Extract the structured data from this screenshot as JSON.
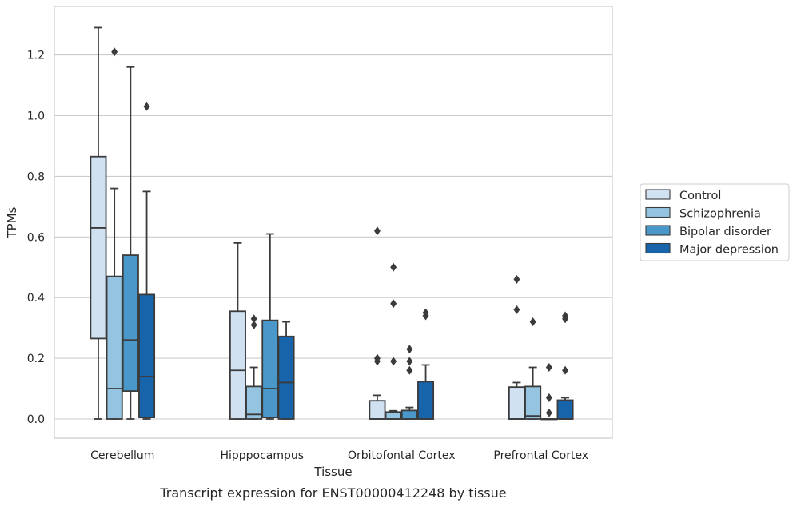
{
  "caption": "Transcript expression for ENST00000412248 by tissue",
  "chart_data": {
    "type": "box",
    "xlabel": "Tissue",
    "ylabel": "TPMs",
    "ylim": [
      -0.063,
      1.36
    ],
    "yticks": [
      0.0,
      0.2,
      0.4,
      0.6,
      0.8,
      1.0,
      1.2
    ],
    "ytick_labels": [
      "0.0",
      "0.2",
      "0.4",
      "0.6",
      "0.8",
      "1.0",
      "1.2"
    ],
    "grid": "horizontal",
    "legend_position": "right",
    "categories": [
      "Cerebellum",
      "Hipppocampus",
      "Orbitofontal Cortex",
      "Prefrontal Cortex"
    ],
    "series": [
      {
        "name": "Control",
        "color": "#d0e1f2",
        "boxes": [
          {
            "whislo": 0.0,
            "q1": 0.265,
            "med": 0.63,
            "q3": 0.865,
            "whishi": 1.29,
            "fliers": []
          },
          {
            "whislo": 0.0,
            "q1": 0.0,
            "med": 0.16,
            "q3": 0.355,
            "whishi": 0.58,
            "fliers": []
          },
          {
            "whislo": 0.0,
            "q1": 0.0,
            "med": 0.0,
            "q3": 0.06,
            "whishi": 0.078,
            "fliers": [
              0.62,
              0.2,
              0.19
            ]
          },
          {
            "whislo": 0.0,
            "q1": 0.0,
            "med": 0.0,
            "q3": 0.105,
            "whishi": 0.12,
            "fliers": [
              0.46,
              0.36
            ]
          }
        ]
      },
      {
        "name": "Schizophrenia",
        "color": "#94c4df",
        "boxes": [
          {
            "whislo": 0.0,
            "q1": 0.0,
            "med": 0.1,
            "q3": 0.47,
            "whishi": 0.76,
            "fliers": [
              1.21
            ]
          },
          {
            "whislo": 0.0,
            "q1": 0.0,
            "med": 0.015,
            "q3": 0.107,
            "whishi": 0.17,
            "fliers": [
              0.33,
              0.31
            ]
          },
          {
            "whislo": 0.0,
            "q1": 0.0,
            "med": 0.0,
            "q3": 0.023,
            "whishi": 0.027,
            "fliers": [
              0.5,
              0.38,
              0.19
            ]
          },
          {
            "whislo": 0.0,
            "q1": 0.0,
            "med": 0.01,
            "q3": 0.107,
            "whishi": 0.17,
            "fliers": [
              0.32
            ]
          }
        ]
      },
      {
        "name": "Bipolar disorder",
        "color": "#4a98c9",
        "boxes": [
          {
            "whislo": 0.0,
            "q1": 0.092,
            "med": 0.26,
            "q3": 0.54,
            "whishi": 1.16,
            "fliers": []
          },
          {
            "whislo": 0.0,
            "q1": 0.005,
            "med": 0.1,
            "q3": 0.325,
            "whishi": 0.61,
            "fliers": []
          },
          {
            "whislo": 0.0,
            "q1": 0.0,
            "med": 0.0,
            "q3": 0.028,
            "whishi": 0.038,
            "fliers": [
              0.23,
              0.19,
              0.16
            ]
          },
          {
            "whislo": 0.0,
            "q1": 0.0,
            "med": 0.0,
            "q3": 0.0,
            "whishi": 0.0,
            "fliers": [
              0.17,
              0.07,
              0.02
            ]
          }
        ]
      },
      {
        "name": "Major depression",
        "color": "#1764ab",
        "boxes": [
          {
            "whislo": 0.0,
            "q1": 0.005,
            "med": 0.14,
            "q3": 0.41,
            "whishi": 0.75,
            "fliers": [
              1.03
            ]
          },
          {
            "whislo": 0.0,
            "q1": 0.0,
            "med": 0.12,
            "q3": 0.272,
            "whishi": 0.32,
            "fliers": []
          },
          {
            "whislo": 0.0,
            "q1": 0.0,
            "med": 0.0,
            "q3": 0.123,
            "whishi": 0.178,
            "fliers": [
              0.35,
              0.34
            ]
          },
          {
            "whislo": 0.0,
            "q1": 0.0,
            "med": 0.0,
            "q3": 0.062,
            "whishi": 0.07,
            "fliers": [
              0.34,
              0.33,
              0.16
            ]
          }
        ]
      }
    ]
  }
}
